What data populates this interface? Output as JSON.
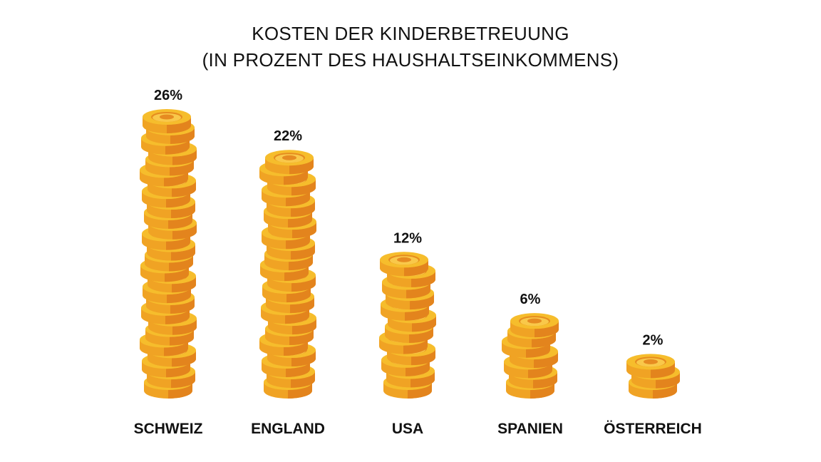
{
  "chart_data": {
    "type": "bar",
    "title": [
      "KOSTEN DER KINDERBETREUUNG",
      "(IN PROZENT DES HAUSHALTSEINKOMMENS)"
    ],
    "categories": [
      "SCHWEIZ",
      "ENGLAND",
      "USA",
      "SPANIEN",
      "ÖSTERREICH"
    ],
    "values": [
      26,
      22,
      12,
      6,
      2
    ],
    "value_labels": [
      "26%",
      "22%",
      "12%",
      "6%",
      "2%"
    ],
    "unit": "%",
    "xlabel": "",
    "ylabel": "",
    "ylim": [
      0,
      26
    ],
    "grid": false,
    "legend": "none",
    "mark_style": "coin-stack",
    "colors": {
      "coin_top": "#f6bd2c",
      "coin_side": "#f0a324",
      "coin_edge": "#e3841d",
      "coin_inner": "#f9c84a",
      "text": "#111111"
    }
  }
}
